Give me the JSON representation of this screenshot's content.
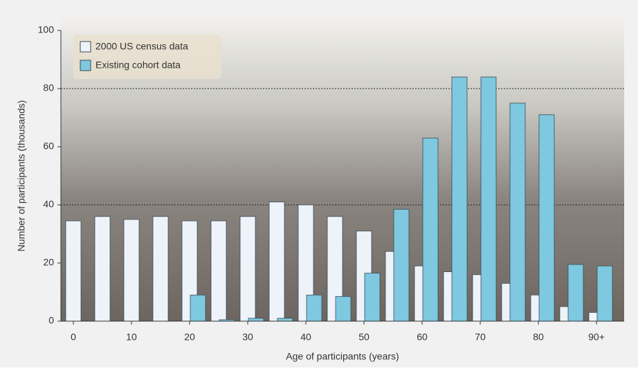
{
  "chart_data": {
    "type": "bar",
    "x_label": "Age of participants (years)",
    "y_label": "Number of participants (thousands)",
    "categories": [
      "0",
      null,
      "10",
      null,
      "20",
      null,
      "30",
      null,
      "40",
      null,
      "50",
      null,
      "60",
      null,
      "70",
      null,
      "80",
      null,
      "90+"
    ],
    "series": [
      {
        "name": "2000 US census data",
        "color": "#eef3fa",
        "values": [
          34.5,
          36,
          35,
          36,
          34.5,
          34.5,
          36,
          41,
          40,
          36,
          31,
          24,
          19,
          17,
          16,
          13,
          9,
          5,
          3
        ]
      },
      {
        "name": "Existing cohort data",
        "color": "#7ec8e0",
        "values": [
          0,
          0,
          0,
          0,
          9,
          0.5,
          1,
          1,
          9,
          8.5,
          16.5,
          38.5,
          63,
          84,
          84,
          75,
          71,
          19.5,
          19
        ]
      }
    ],
    "ylim": [
      0,
      100
    ],
    "yticks": [
      0,
      20,
      40,
      60,
      80,
      100
    ],
    "gridlines": [
      40,
      80
    ],
    "legend": "top-left"
  }
}
